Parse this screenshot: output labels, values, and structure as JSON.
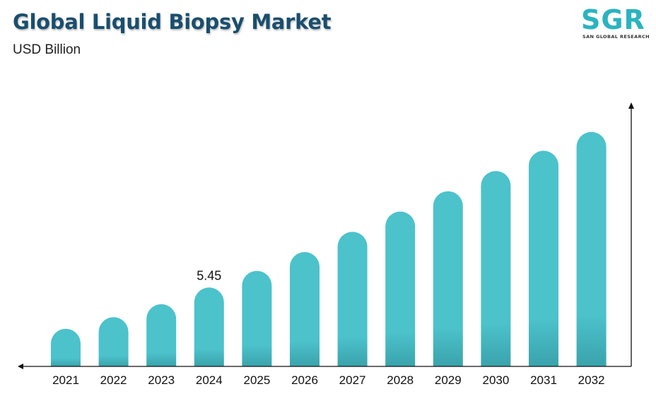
{
  "header": {
    "title": "Global Liquid Biopsy Market",
    "subtitle": "USD Billion"
  },
  "logo": {
    "letters": "SGR",
    "tagline": "SAN GLOBAL RESEARCH",
    "color": "#2bb3c0"
  },
  "chart_data": {
    "type": "bar",
    "categories": [
      "2021",
      "2022",
      "2023",
      "2024",
      "2025",
      "2026",
      "2027",
      "2028",
      "2029",
      "2030",
      "2031",
      "2032"
    ],
    "values": [
      2.6,
      3.4,
      4.3,
      5.45,
      6.6,
      7.9,
      9.3,
      10.7,
      12.1,
      13.5,
      14.9,
      16.2
    ],
    "data_labels": [
      {
        "category": "2024",
        "text": "5.45"
      }
    ],
    "ylim": [
      0,
      18
    ],
    "bar_color": "#4cc2cb",
    "axis_color": "#111111",
    "grid": false,
    "legend": "none"
  }
}
